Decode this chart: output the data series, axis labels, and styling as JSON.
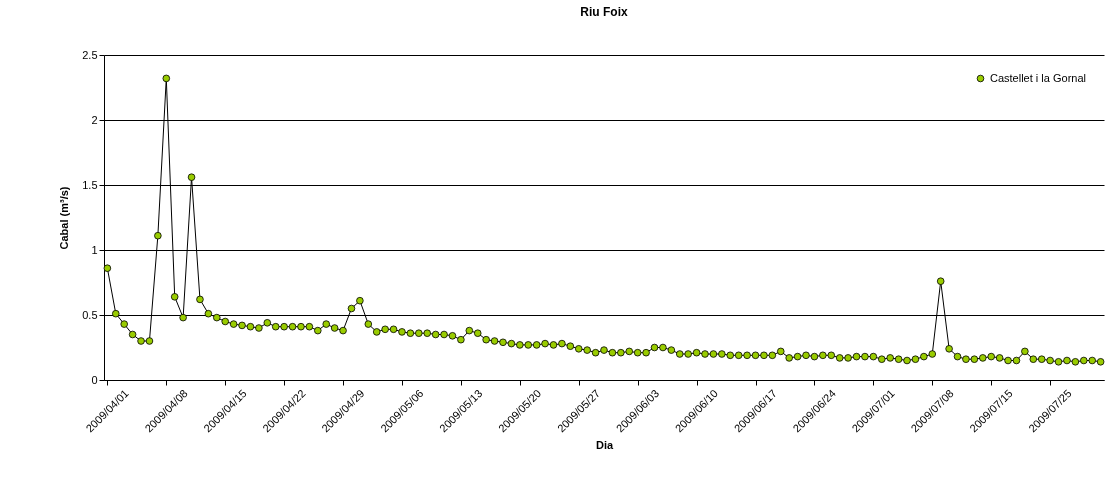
{
  "chart_data": {
    "type": "line",
    "title": "Riu Foix",
    "xlabel": "Dia",
    "ylabel": "Cabal (m³/s)",
    "categories": [
      "2009/04/01",
      null,
      null,
      null,
      null,
      null,
      null,
      "2009/04/08",
      null,
      null,
      null,
      null,
      null,
      null,
      "2009/04/15",
      null,
      null,
      null,
      null,
      null,
      null,
      "2009/04/22",
      null,
      null,
      null,
      null,
      null,
      null,
      "2009/04/29",
      null,
      null,
      null,
      null,
      null,
      null,
      "2009/05/06",
      null,
      null,
      null,
      null,
      null,
      null,
      "2009/05/13",
      null,
      null,
      null,
      null,
      null,
      null,
      "2009/05/20",
      null,
      null,
      null,
      null,
      null,
      null,
      "2009/05/27",
      null,
      null,
      null,
      null,
      null,
      null,
      "2009/06/03",
      null,
      null,
      null,
      null,
      null,
      null,
      "2009/06/10",
      null,
      null,
      null,
      null,
      null,
      null,
      "2009/06/17",
      null,
      null,
      null,
      null,
      null,
      null,
      "2009/06/24",
      null,
      null,
      null,
      null,
      null,
      null,
      "2009/07/01",
      null,
      null,
      null,
      null,
      null,
      null,
      "2009/07/08",
      null,
      null,
      null,
      null,
      null,
      null,
      "2009/07/15",
      null,
      null,
      null,
      null,
      null,
      null,
      "2009/07/25",
      null,
      null,
      null,
      null,
      null,
      null
    ],
    "series": [
      {
        "name": "Castellet i la Gornal",
        "color": "#99cc00",
        "values": [
          0.86,
          0.51,
          0.43,
          0.35,
          0.3,
          0.3,
          1.11,
          2.32,
          0.64,
          0.48,
          1.56,
          0.62,
          0.51,
          0.48,
          0.45,
          0.43,
          0.42,
          0.41,
          0.4,
          0.44,
          0.41,
          0.41,
          0.41,
          0.41,
          0.41,
          0.38,
          0.43,
          0.4,
          0.38,
          0.55,
          0.61,
          0.43,
          0.37,
          0.39,
          0.39,
          0.37,
          0.36,
          0.36,
          0.36,
          0.35,
          0.35,
          0.34,
          0.31,
          0.38,
          0.36,
          0.31,
          0.3,
          0.29,
          0.28,
          0.27,
          0.27,
          0.27,
          0.28,
          0.27,
          0.28,
          0.26,
          0.24,
          0.23,
          0.21,
          0.23,
          0.21,
          0.21,
          0.22,
          0.21,
          0.21,
          0.25,
          0.25,
          0.23,
          0.2,
          0.2,
          0.21,
          0.2,
          0.2,
          0.2,
          0.19,
          0.19,
          0.19,
          0.19,
          0.19,
          0.19,
          0.22,
          0.17,
          0.18,
          0.19,
          0.18,
          0.19,
          0.19,
          0.17,
          0.17,
          0.18,
          0.18,
          0.18,
          0.16,
          0.17,
          0.16,
          0.15,
          0.16,
          0.18,
          0.2,
          0.76,
          0.24,
          0.18,
          0.16,
          0.16,
          0.17,
          0.18,
          0.17,
          0.15,
          0.15,
          0.22,
          0.16,
          0.16,
          0.15,
          0.14,
          0.15,
          0.14,
          0.15,
          0.15,
          0.14
        ]
      }
    ],
    "ylim": [
      0,
      2.5
    ],
    "yticks": [
      {
        "value": 0,
        "label": "0"
      },
      0.5,
      {
        "value": 1,
        "label": "1"
      },
      1.5,
      {
        "value": 2,
        "label": "2"
      },
      2.5
    ],
    "grid": "y",
    "legend": "top right",
    "marker": "circle",
    "line_style": "solid"
  }
}
